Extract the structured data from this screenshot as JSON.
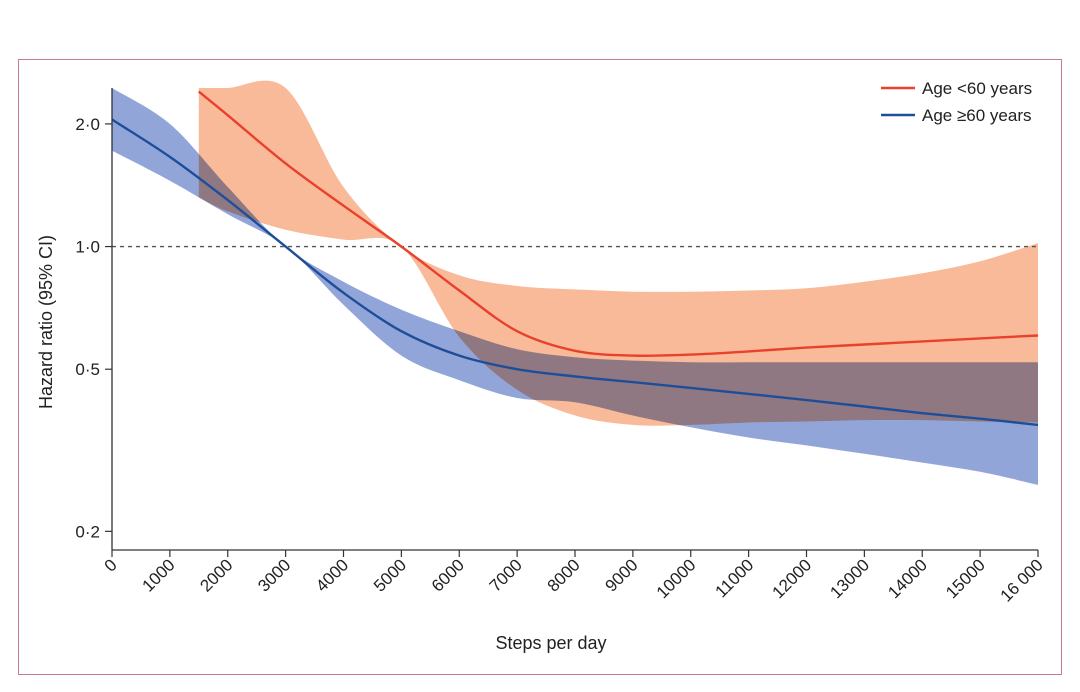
{
  "chart_data": {
    "type": "line",
    "title": "",
    "xlabel": "Steps per day",
    "ylabel": "Hazard ratio (95% CI)",
    "y_scale": "log",
    "xlim": [
      0,
      16000
    ],
    "ylim": [
      0.18,
      2.45
    ],
    "reference_line": 1.0,
    "x_ticks": [
      0,
      1000,
      2000,
      3000,
      4000,
      5000,
      6000,
      7000,
      8000,
      9000,
      10000,
      11000,
      12000,
      13000,
      14000,
      15000,
      16000
    ],
    "x_tick_labels": [
      "0",
      "1000",
      "2000",
      "3000",
      "4000",
      "5000",
      "6000",
      "7000",
      "8000",
      "9000",
      "10000",
      "11000",
      "12000",
      "13000",
      "14000",
      "15000",
      "16 000"
    ],
    "y_ticks": [
      0.2,
      0.5,
      1.0,
      2.0
    ],
    "y_tick_labels": [
      "0·2",
      "0·5",
      "1·0",
      "2·0"
    ],
    "legend_position": "top-right",
    "series": [
      {
        "name": "Age <60 years",
        "color": "#e8412c",
        "band_color": "#f7a77e",
        "x": [
          1500,
          2000,
          3000,
          4000,
          5000,
          6000,
          7000,
          8000,
          9000,
          10000,
          11000,
          12000,
          13000,
          14000,
          15000,
          16000
        ],
        "values": [
          2.4,
          2.1,
          1.6,
          1.26,
          1.0,
          0.78,
          0.62,
          0.555,
          0.54,
          0.543,
          0.553,
          0.565,
          0.575,
          0.585,
          0.595,
          0.605
        ],
        "ci_lower": [
          1.32,
          1.22,
          1.1,
          1.04,
          1.0,
          0.6,
          0.445,
          0.385,
          0.365,
          0.365,
          0.37,
          0.372,
          0.375,
          0.375,
          0.372,
          0.37
        ],
        "ci_upper": [
          2.45,
          2.45,
          2.45,
          1.4,
          1.0,
          0.85,
          0.8,
          0.785,
          0.775,
          0.775,
          0.78,
          0.79,
          0.82,
          0.86,
          0.92,
          1.02
        ]
      },
      {
        "name": "Age ≥60 years",
        "color": "#1f4e99",
        "band_color": "#7f95d1",
        "x": [
          0,
          1000,
          2000,
          3000,
          4000,
          5000,
          6000,
          7000,
          8000,
          9000,
          10000,
          11000,
          12000,
          13000,
          14000,
          15000,
          16000
        ],
        "values": [
          2.05,
          1.66,
          1.3,
          1.0,
          0.77,
          0.62,
          0.54,
          0.5,
          0.48,
          0.465,
          0.45,
          0.435,
          0.42,
          0.405,
          0.39,
          0.378,
          0.365
        ],
        "ci_lower": [
          1.72,
          1.45,
          1.2,
          1.0,
          0.72,
          0.54,
          0.47,
          0.425,
          0.415,
          0.385,
          0.36,
          0.34,
          0.325,
          0.31,
          0.295,
          0.28,
          0.26
        ],
        "ci_upper": [
          2.45,
          2.0,
          1.4,
          1.0,
          0.82,
          0.7,
          0.62,
          0.56,
          0.535,
          0.525,
          0.52,
          0.52,
          0.52,
          0.52,
          0.52,
          0.52,
          0.52
        ]
      }
    ]
  }
}
